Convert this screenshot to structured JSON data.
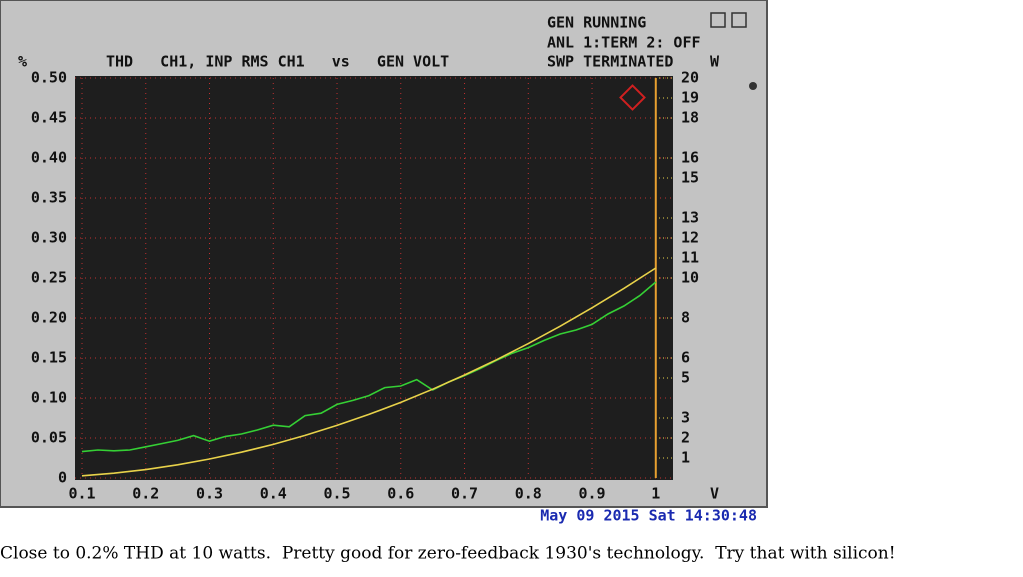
{
  "chart_data": {
    "type": "line",
    "title": "THD   CH1, INP RMS CH1   vs   GEN VOLT",
    "status_lines": [
      "GEN RUNNING",
      "ANL 1:TERM 2: OFF",
      "SWP TERMINATED"
    ],
    "y_unit": "%",
    "y2_unit": "W",
    "x_unit": "V",
    "timestamp": "May 09 2015 Sat 14:30:48",
    "caption": "Close to 0.2% THD at 10 watts.  Pretty good for zero-feedback 1930's technology.  Try that with silicon!",
    "xlim": [
      0.089,
      1.027
    ],
    "xticks": [
      0.1,
      0.2,
      0.3,
      0.4,
      0.5,
      0.6,
      0.7,
      0.8,
      0.9,
      1
    ],
    "ylim": [
      0,
      0.5
    ],
    "yticks": [
      0,
      0.05,
      {
        "value": 0.1,
        "label": "0.10"
      },
      0.15,
      {
        "value": 0.2,
        "label": "0.20"
      },
      0.25,
      {
        "value": 0.3,
        "label": "0.30"
      },
      0.35,
      {
        "value": 0.4,
        "label": "0.40"
      },
      0.45,
      {
        "value": 0.5,
        "label": "0.50"
      }
    ],
    "y2lim": [
      0,
      20
    ],
    "y2ticks": [
      1,
      2,
      3,
      5,
      6,
      8,
      10,
      11,
      12,
      13,
      15,
      16,
      18,
      19,
      20
    ],
    "grid": true,
    "series": [
      {
        "color": "#35d035",
        "x": [
          0.1,
          0.125,
          0.15,
          0.175,
          0.2,
          0.225,
          0.25,
          0.275,
          0.3,
          0.325,
          0.35,
          0.375,
          0.4,
          0.425,
          0.45,
          0.475,
          0.5,
          0.525,
          0.55,
          0.575,
          0.6,
          0.625,
          0.65,
          0.675,
          0.7,
          0.725,
          0.75,
          0.775,
          0.8,
          0.825,
          0.85,
          0.875,
          0.9,
          0.925,
          0.95,
          0.975,
          1
        ],
        "values": [
          0.033,
          0.035,
          0.034,
          0.035,
          0.039,
          0.043,
          0.047,
          0.053,
          0.046,
          0.052,
          0.055,
          0.06,
          0.066,
          0.064,
          0.078,
          0.081,
          0.092,
          0.097,
          0.103,
          0.113,
          0.115,
          0.123,
          0.11,
          0.12,
          0.128,
          0.137,
          0.147,
          0.156,
          0.163,
          0.172,
          0.18,
          0.185,
          0.192,
          0.205,
          0.215,
          0.228,
          0.245
        ]
      },
      {
        "color": "#e8d24a",
        "axis": "y2",
        "x": [
          0.1,
          0.15,
          0.2,
          0.25,
          0.3,
          0.35,
          0.4,
          0.45,
          0.5,
          0.55,
          0.6,
          0.65,
          0.7,
          0.75,
          0.8,
          0.85,
          0.9,
          0.95,
          1
        ],
        "values": [
          0.11,
          0.24,
          0.42,
          0.66,
          0.95,
          1.29,
          1.68,
          2.13,
          2.63,
          3.18,
          3.78,
          4.44,
          5.15,
          5.91,
          6.72,
          7.59,
          8.51,
          9.48,
          10.5
        ]
      }
    ]
  }
}
